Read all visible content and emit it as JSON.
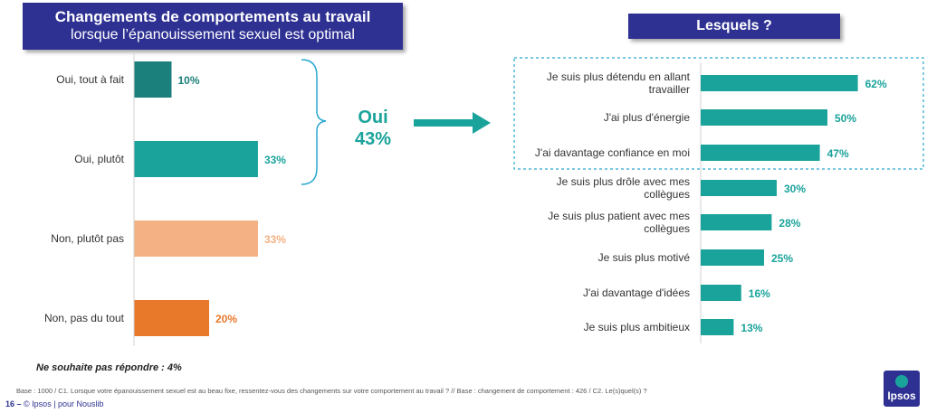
{
  "left_title": {
    "line1": "Changements de comportements au travail",
    "line2": "lorsque l’épanouissement sexuel est optimal"
  },
  "right_title": "Lesquels ?",
  "oui_label": {
    "line1": "Oui",
    "line2": "43%"
  },
  "no_answer": "Ne souhaite pas répondre : 4%",
  "base_note": "Base : 1000 / C1. Lorsque votre épanouissement sexuel est au beau fixe, ressentez-vous des changements sur votre comportement au travail ? // Base : changement de comportement : 426 / C2. Le(s)quel(s) ?",
  "footer": {
    "page": "16 –",
    "text": "© Ipsos | pour Nouslib"
  },
  "logo_text": "Ipsos",
  "chart_data": [
    {
      "type": "bar",
      "orientation": "horizontal",
      "categories": [
        "Oui, tout à fait",
        "Oui, plutôt",
        "Non, plutôt pas",
        "Non, pas du tout"
      ],
      "values": [
        10,
        33,
        33,
        20
      ],
      "value_labels": [
        "10%",
        "33%",
        "33%",
        "20%"
      ],
      "colors": [
        "#1b7f7b",
        "#1aa39b",
        "#f4b183",
        "#e8792b"
      ]
    },
    {
      "type": "bar",
      "orientation": "horizontal",
      "categories": [
        "Je suis plus détendu en allant travailler",
        "J'ai plus d'énergie",
        "J'ai davantage confiance en moi",
        "Je suis plus drôle avec mes collègues",
        "Je suis plus patient avec mes collègues",
        "Je suis plus motivé",
        "J'ai davantage d'idées",
        "Je suis plus ambitieux"
      ],
      "values": [
        62,
        50,
        47,
        30,
        28,
        25,
        16,
        13
      ],
      "value_labels": [
        "62%",
        "50%",
        "47%",
        "30%",
        "28%",
        "25%",
        "16%",
        "13%"
      ],
      "colors": [
        "#1aa39b"
      ]
    }
  ]
}
